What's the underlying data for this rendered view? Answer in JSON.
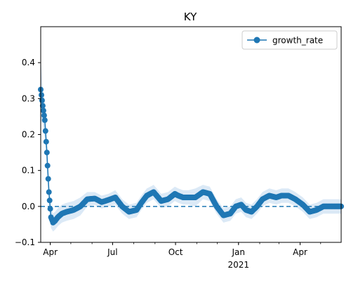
{
  "chart_data": {
    "type": "line",
    "title": "KY",
    "xlabel": "",
    "ylabel": "",
    "ylim": [
      -0.1,
      0.5
    ],
    "xlim": [
      "2020-03-18",
      "2021-05-31"
    ],
    "x_tick_labels": [
      {
        "date": "2020-04-01",
        "label": "Apr",
        "sub": ""
      },
      {
        "date": "2020-07-01",
        "label": "Jul",
        "sub": ""
      },
      {
        "date": "2020-10-01",
        "label": "Oct",
        "sub": ""
      },
      {
        "date": "2021-01-01",
        "label": "Jan",
        "sub": "2021"
      },
      {
        "date": "2021-04-01",
        "label": "Apr",
        "sub": ""
      }
    ],
    "y_ticks": [
      -0.1,
      0.0,
      0.1,
      0.2,
      0.3,
      0.4
    ],
    "y_tick_labels": [
      "−0.1",
      "0.0",
      "0.1",
      "0.2",
      "0.3",
      "0.4"
    ],
    "reference_line": 0.0,
    "legend": {
      "placement": "top-right",
      "entries": [
        "growth_rate"
      ]
    },
    "colors": {
      "series": "#1f77b4",
      "band": "#dbe9f6"
    },
    "series": [
      {
        "name": "growth_rate",
        "x": [
          "2020-03-18",
          "2020-03-21",
          "2020-03-24",
          "2020-03-27",
          "2020-03-30",
          "2020-04-02",
          "2020-04-05",
          "2020-04-08",
          "2020-04-12",
          "2020-04-18",
          "2020-04-25",
          "2020-05-05",
          "2020-05-15",
          "2020-05-25",
          "2020-06-05",
          "2020-06-15",
          "2020-06-25",
          "2020-07-05",
          "2020-07-15",
          "2020-07-25",
          "2020-08-05",
          "2020-08-12",
          "2020-08-20",
          "2020-08-30",
          "2020-09-10",
          "2020-09-20",
          "2020-09-30",
          "2020-10-05",
          "2020-10-12",
          "2020-10-20",
          "2020-10-30",
          "2020-11-10",
          "2020-11-20",
          "2020-11-30",
          "2020-12-10",
          "2020-12-20",
          "2020-12-28",
          "2021-01-05",
          "2021-01-12",
          "2021-01-20",
          "2021-01-28",
          "2021-02-05",
          "2021-02-15",
          "2021-02-25",
          "2021-03-05",
          "2021-03-15",
          "2021-03-25",
          "2021-04-05",
          "2021-04-15",
          "2021-04-25",
          "2021-05-05",
          "2021-05-15",
          "2021-05-25",
          "2021-05-31"
        ],
        "y": [
          0.325,
          0.28,
          0.24,
          0.15,
          0.04,
          -0.03,
          -0.045,
          -0.04,
          -0.03,
          -0.02,
          -0.015,
          -0.01,
          0.0,
          0.02,
          0.022,
          0.012,
          0.018,
          0.025,
          0.0,
          -0.015,
          -0.01,
          0.01,
          0.03,
          0.04,
          0.015,
          0.02,
          0.035,
          0.03,
          0.025,
          0.025,
          0.025,
          0.04,
          0.035,
          0.0,
          -0.025,
          -0.02,
          0.0,
          0.005,
          -0.01,
          -0.015,
          0.0,
          0.02,
          0.03,
          0.025,
          0.03,
          0.03,
          0.02,
          0.005,
          -0.015,
          -0.01,
          0.0,
          0.0,
          0.0,
          0.0
        ],
        "band_upper": [
          0.41,
          0.33,
          0.29,
          0.19,
          0.07,
          0.0,
          -0.02,
          -0.015,
          -0.005,
          0.005,
          0.01,
          0.015,
          0.025,
          0.04,
          0.04,
          0.03,
          0.035,
          0.045,
          0.02,
          0.005,
          0.01,
          0.03,
          0.05,
          0.06,
          0.035,
          0.04,
          0.055,
          0.05,
          0.045,
          0.045,
          0.05,
          0.06,
          0.055,
          0.02,
          -0.005,
          0.0,
          0.02,
          0.025,
          0.01,
          0.005,
          0.02,
          0.04,
          0.05,
          0.045,
          0.05,
          0.05,
          0.04,
          0.025,
          0.005,
          0.01,
          0.02,
          0.02,
          0.02,
          0.02
        ],
        "band_lower": [
          0.24,
          0.23,
          0.19,
          0.11,
          0.01,
          -0.06,
          -0.07,
          -0.065,
          -0.055,
          -0.045,
          -0.04,
          -0.035,
          -0.025,
          0.0,
          0.004,
          -0.006,
          0.0,
          0.005,
          -0.02,
          -0.035,
          -0.03,
          -0.01,
          0.01,
          0.02,
          -0.005,
          0.0,
          0.015,
          0.01,
          0.005,
          0.005,
          0.0,
          0.02,
          0.015,
          -0.02,
          -0.045,
          -0.04,
          -0.02,
          -0.015,
          -0.03,
          -0.035,
          -0.02,
          0.0,
          0.01,
          0.005,
          0.01,
          0.01,
          0.0,
          -0.015,
          -0.035,
          -0.03,
          -0.02,
          -0.02,
          -0.02,
          -0.02
        ]
      }
    ]
  }
}
